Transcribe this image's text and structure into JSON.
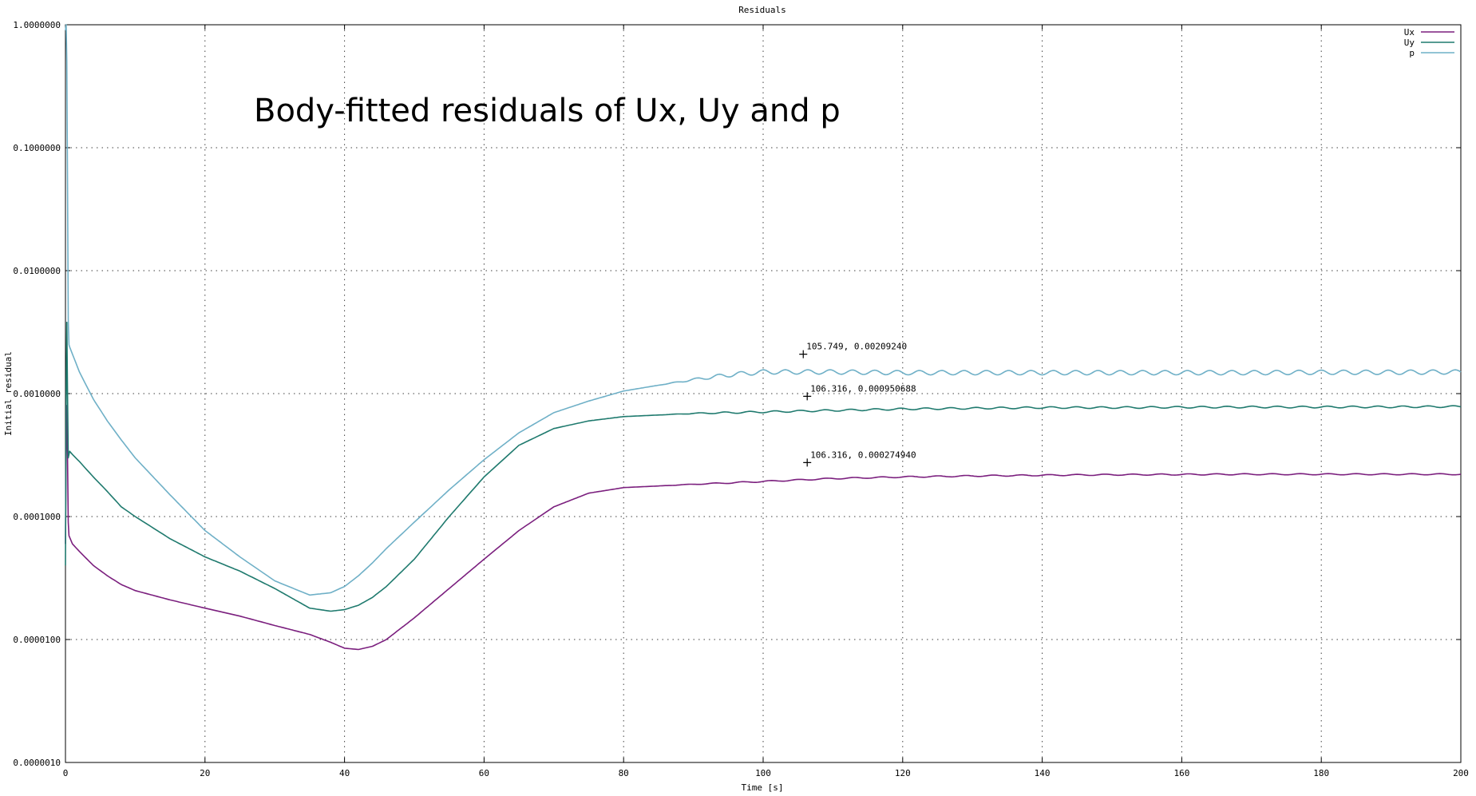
{
  "chart_data": {
    "type": "line",
    "title": "Residuals",
    "overlay_text": "Body-fitted residuals of Ux, Uy and p",
    "xlabel": "Time [s]",
    "ylabel": "Initial residual",
    "xlim": [
      0,
      200
    ],
    "ylim": [
      1e-06,
      1.0
    ],
    "yscale": "log",
    "grid": true,
    "legend_placement": "top-right",
    "x_ticks": [
      "0",
      "20",
      "40",
      "60",
      "80",
      "100",
      "120",
      "140",
      "160",
      "180",
      "200"
    ],
    "y_ticks": [
      "1.0000000",
      "0.1000000",
      "0.0100000",
      "0.0010000",
      "0.0001000",
      "0.0000100",
      "0.0000010"
    ],
    "series": [
      {
        "name": "Ux",
        "color": "#7b1f7e",
        "x": [
          0,
          0.1,
          0.2,
          0.3,
          0.4,
          0.5,
          0.6,
          1,
          2,
          4,
          6,
          8,
          10,
          15,
          20,
          25,
          30,
          35,
          38,
          40,
          42,
          44,
          46,
          50,
          55,
          60,
          65,
          70,
          75,
          80,
          90,
          100,
          110,
          120,
          130,
          140,
          150,
          160,
          170,
          180,
          190,
          200
        ],
        "y": [
          6e-05,
          0.0004,
          0.0008,
          0.0003,
          9e-05,
          7e-05,
          6.8e-05,
          6e-05,
          5.2e-05,
          4e-05,
          3.3e-05,
          2.8e-05,
          2.5e-05,
          2.1e-05,
          1.8e-05,
          1.55e-05,
          1.3e-05,
          1.1e-05,
          9.5e-06,
          8.5e-06,
          8.3e-06,
          8.8e-06,
          1e-05,
          1.5e-05,
          2.6e-05,
          4.5e-05,
          7.7e-05,
          0.00012,
          0.000155,
          0.000172,
          0.000183,
          0.000193,
          0.000204,
          0.00021,
          0.000214,
          0.000217,
          0.000219,
          0.00022,
          0.000221,
          0.000221,
          0.000221,
          0.000221
        ]
      },
      {
        "name": "Uy",
        "color": "#1f7a6e",
        "x": [
          0,
          0.1,
          0.2,
          0.3,
          0.4,
          0.5,
          0.6,
          1,
          2,
          4,
          6,
          8,
          10,
          15,
          20,
          25,
          30,
          35,
          38,
          40,
          42,
          44,
          46,
          50,
          55,
          60,
          65,
          70,
          75,
          80,
          90,
          100,
          110,
          120,
          130,
          140,
          150,
          160,
          170,
          180,
          190,
          200
        ],
        "y": [
          4e-05,
          0.001,
          0.0038,
          0.001,
          0.0003,
          0.00032,
          0.00034,
          0.00032,
          0.00028,
          0.00021,
          0.00016,
          0.00012,
          0.0001,
          6.6e-05,
          4.7e-05,
          3.6e-05,
          2.6e-05,
          1.8e-05,
          1.7e-05,
          1.75e-05,
          1.9e-05,
          2.2e-05,
          2.7e-05,
          4.5e-05,
          0.0001,
          0.00021,
          0.00038,
          0.00052,
          0.0006,
          0.00065,
          0.00069,
          0.00071,
          0.00073,
          0.00075,
          0.00076,
          0.00077,
          0.00077,
          0.000775,
          0.000778,
          0.000778,
          0.00078,
          0.000785
        ]
      },
      {
        "name": "p",
        "color": "#6fb0c7",
        "x": [
          0,
          0.1,
          0.2,
          0.3,
          0.4,
          0.5,
          0.6,
          1,
          2,
          4,
          6,
          8,
          10,
          15,
          20,
          25,
          30,
          35,
          38,
          40,
          42,
          44,
          46,
          50,
          55,
          60,
          65,
          70,
          75,
          80,
          85,
          90,
          95,
          100,
          110,
          120,
          130,
          140,
          150,
          160,
          170,
          180,
          190,
          200
        ],
        "y": [
          0.9,
          1.0,
          0.5,
          0.05,
          0.004,
          0.0025,
          0.0024,
          0.0021,
          0.0015,
          0.0009,
          0.0006,
          0.00042,
          0.0003,
          0.00015,
          7.7e-05,
          4.7e-05,
          3e-05,
          2.3e-05,
          2.4e-05,
          2.7e-05,
          3.3e-05,
          4.2e-05,
          5.5e-05,
          9e-05,
          0.000165,
          0.00029,
          0.00048,
          0.0007,
          0.00087,
          0.00105,
          0.00117,
          0.0013,
          0.00142,
          0.0015,
          0.0015,
          0.00148,
          0.00148,
          0.00148,
          0.00148,
          0.00148,
          0.00148,
          0.00149,
          0.00149,
          0.0015
        ]
      }
    ],
    "annotations": [
      {
        "x": 105.749,
        "y": 0.0020924,
        "text": "105.749,  0.00209240"
      },
      {
        "x": 106.316,
        "y": 0.000950688,
        "text": "106.316,  0.000950688"
      },
      {
        "x": 106.316,
        "y": 0.00027494,
        "text": "106.316,  0.000274940"
      }
    ]
  }
}
